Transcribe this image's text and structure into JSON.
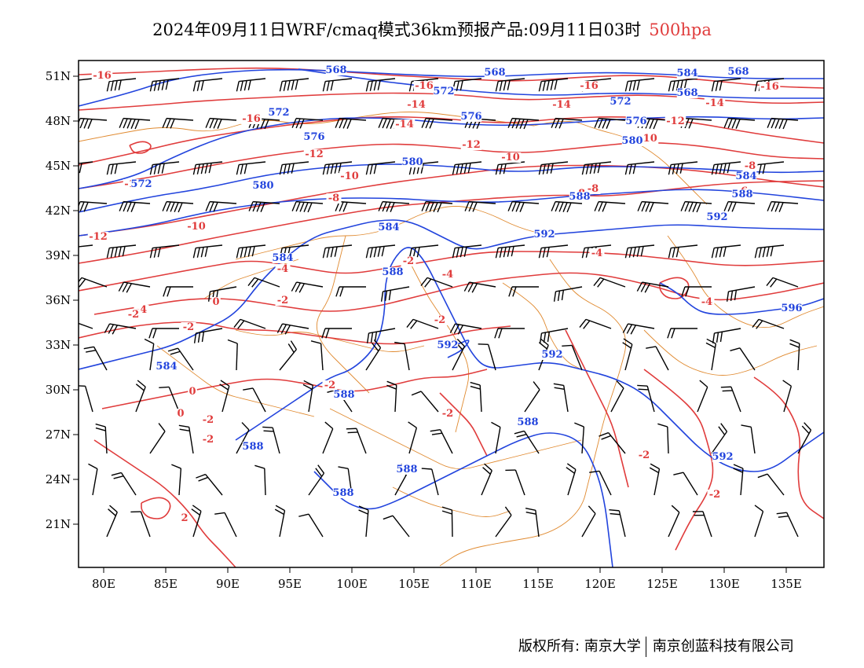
{
  "title": {
    "main": "2024年09月11日WRF/cmaq模式36km预报产品:09月11日03时",
    "level": "500hpa"
  },
  "axes": {
    "lon_labels": [
      "80E",
      "85E",
      "90E",
      "95E",
      "100E",
      "105E",
      "110E",
      "115E",
      "120E",
      "125E",
      "130E",
      "135E"
    ],
    "lat_labels": [
      "51N",
      "48N",
      "45N",
      "42N",
      "39N",
      "36N",
      "33N",
      "30N",
      "27N",
      "24N",
      "21N"
    ]
  },
  "contours": {
    "height_labels": [
      "568",
      "572",
      "576",
      "580",
      "584",
      "588",
      "592",
      "596"
    ],
    "temperature_labels": [
      "-16",
      "-14",
      "-12",
      "-10",
      "-8",
      "-6",
      "-4",
      "-2",
      "0",
      "2"
    ],
    "height_color": "#2244dd",
    "temperature_color": "#e03c3c",
    "boundary_color": "#e08a30"
  },
  "footer": {
    "copyright": "版权所有: 南京大学",
    "company": "南京创蓝科技有限公司"
  }
}
